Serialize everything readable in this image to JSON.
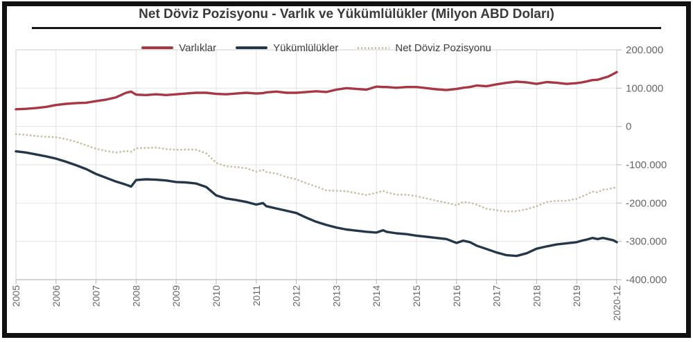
{
  "header": {
    "title": "Net Döviz Pozisyonu - Varlık ve Yükümlülükler (Milyon ABD Doları)"
  },
  "chart_data": {
    "type": "line",
    "title": "Net Döviz Pozisyonu - Varlık ve Yükümlülükler (Milyon ABD Doları)",
    "x_unit": "months since 2005-01",
    "x_range": [
      0,
      191
    ],
    "y_range": [
      -400000,
      200000
    ],
    "grid": true,
    "legend_position": "top",
    "x_ticks": {
      "positions": [
        0,
        12,
        24,
        36,
        48,
        60,
        72,
        84,
        96,
        108,
        120,
        132,
        144,
        156,
        168,
        191
      ],
      "labels": [
        "2005",
        "2006",
        "2007",
        "2008",
        "2009",
        "2010",
        "2011",
        "2012",
        "2013",
        "2014",
        "2015",
        "2016",
        "2017",
        "2018",
        "2019",
        "2020-12"
      ]
    },
    "y_ticks": {
      "values": [
        200000,
        100000,
        0,
        -100000,
        -200000,
        -300000,
        -400000
      ],
      "labels": [
        "200.000",
        "100.000",
        "0",
        "-100.000",
        "-200.000",
        "-300.000",
        "-400.000"
      ]
    },
    "x": [
      0,
      3,
      6,
      9,
      12,
      15,
      18,
      21,
      24,
      27,
      30,
      33,
      34.5,
      36,
      39,
      42,
      45,
      48,
      51,
      54,
      57,
      60,
      63,
      66,
      69,
      72,
      74,
      75,
      78,
      81,
      84,
      87,
      90,
      93,
      96,
      99,
      102,
      105,
      108,
      110,
      111,
      114,
      117,
      120,
      123,
      126,
      129,
      132,
      134,
      136,
      138,
      141,
      144,
      147,
      150,
      153,
      156,
      159,
      162,
      165,
      168,
      171,
      174,
      177,
      180,
      183,
      186,
      189,
      191
    ],
    "series": [
      {
        "name": "Varlıklar",
        "color": "#a93645",
        "style": "solid",
        "values": [
          45000,
          46000,
          48000,
          51000,
          56000,
          59000,
          61000,
          62000,
          66000,
          70000,
          76000,
          88000,
          91000,
          83000,
          82000,
          84000,
          82000,
          84000,
          86000,
          88000,
          88000,
          85000,
          84000,
          86000,
          88000,
          86000,
          87000,
          89000,
          91000,
          88000,
          88000,
          90000,
          92000,
          90000,
          96000,
          100000,
          98000,
          96000,
          104000,
          103000,
          103000,
          101000,
          103000,
          103000,
          100000,
          97000,
          95000,
          98000,
          101000,
          103000,
          107000,
          105000,
          110000,
          114000,
          117000,
          115000,
          111000,
          116000,
          114000,
          111000,
          113000,
          115000,
          118000,
          121000,
          122000,
          126000,
          130000,
          137000,
          142000
        ]
      },
      {
        "name": "Yükümlülükler",
        "color": "#24374a",
        "style": "solid",
        "values": [
          -65000,
          -68000,
          -73000,
          -78000,
          -84000,
          -92000,
          -101000,
          -111000,
          -124000,
          -134000,
          -144000,
          -152000,
          -157000,
          -140000,
          -138000,
          -139000,
          -141000,
          -145000,
          -146000,
          -149000,
          -158000,
          -180000,
          -188000,
          -192000,
          -197000,
          -204000,
          -200000,
          -208000,
          -214000,
          -220000,
          -226000,
          -238000,
          -249000,
          -257000,
          -264000,
          -269000,
          -272000,
          -275000,
          -277000,
          -271000,
          -275000,
          -279000,
          -281000,
          -285000,
          -288000,
          -291000,
          -294000,
          -304000,
          -298000,
          -302000,
          -311000,
          -320000,
          -329000,
          -336000,
          -338000,
          -331000,
          -319000,
          -313000,
          -308000,
          -305000,
          -302000,
          -298000,
          -295000,
          -291000,
          -294000,
          -291000,
          -294000,
          -297000,
          -302000
        ]
      },
      {
        "name": "Net Döviz Pozisyonu",
        "color": "#c9c0a2",
        "style": "dotted",
        "values": [
          -20000,
          -22000,
          -25000,
          -27000,
          -28000,
          -33000,
          -40000,
          -49000,
          -58000,
          -64000,
          -68000,
          -64000,
          -66000,
          -57000,
          -56000,
          -55000,
          -59000,
          -61000,
          -60000,
          -61000,
          -70000,
          -95000,
          -104000,
          -106000,
          -109000,
          -118000,
          -113000,
          -119000,
          -123000,
          -132000,
          -138000,
          -148000,
          -157000,
          -167000,
          -168000,
          -169000,
          -174000,
          -179000,
          -173000,
          -168000,
          -172000,
          -178000,
          -178000,
          -182000,
          -188000,
          -194000,
          -199000,
          -206000,
          -197000,
          -199000,
          -204000,
          -215000,
          -219000,
          -222000,
          -221000,
          -216000,
          -208000,
          -197000,
          -194000,
          -194000,
          -189000,
          -183000,
          -177000,
          -170000,
          -172000,
          -165000,
          -164000,
          -160000,
          -160000
        ]
      }
    ]
  }
}
